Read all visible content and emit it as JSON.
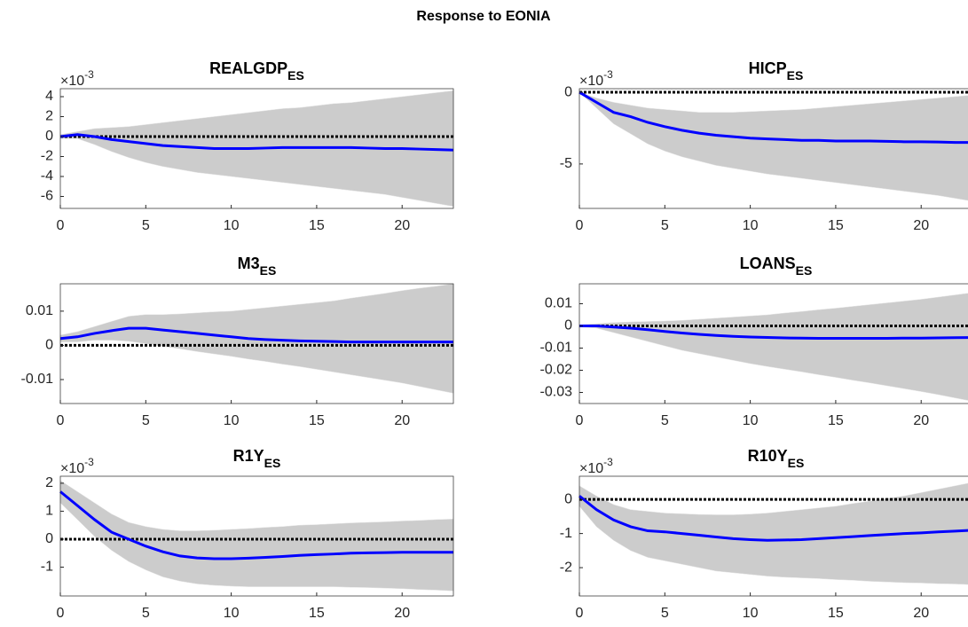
{
  "title": "Response to EONIA",
  "chart_data": [
    {
      "type": "line",
      "title": "REALGDP",
      "title_subscript": "ES",
      "axis_multiplier": "×10",
      "axis_exponent": "-3",
      "x": [
        0,
        1,
        2,
        3,
        4,
        5,
        6,
        7,
        8,
        9,
        10,
        11,
        12,
        13,
        14,
        15,
        16,
        17,
        18,
        19,
        20,
        21,
        22,
        23
      ],
      "xlim": [
        0,
        23
      ],
      "xticks": [
        0,
        5,
        10,
        15,
        20
      ],
      "ylim": [
        -7.2,
        4.8
      ],
      "yticks": [
        4,
        2,
        0,
        -2,
        -4,
        -6
      ],
      "reference_line": 0,
      "band": {
        "color": "#cccccc",
        "upper": [
          0.2,
          0.5,
          0.8,
          0.9,
          1.0,
          1.2,
          1.4,
          1.6,
          1.8,
          2.0,
          2.2,
          2.4,
          2.6,
          2.8,
          2.9,
          3.1,
          3.3,
          3.4,
          3.6,
          3.8,
          4.0,
          4.2,
          4.4,
          4.6
        ],
        "lower": [
          -0.2,
          -0.2,
          -0.8,
          -1.5,
          -2.1,
          -2.6,
          -3.0,
          -3.3,
          -3.6,
          -3.8,
          -4.0,
          -4.2,
          -4.4,
          -4.6,
          -4.8,
          -5.0,
          -5.2,
          -5.4,
          -5.6,
          -5.8,
          -6.1,
          -6.4,
          -6.7,
          -7.0
        ]
      },
      "series": [
        {
          "color": "#0000ff",
          "values": [
            0,
            0.2,
            0,
            -0.3,
            -0.5,
            -0.7,
            -0.9,
            -1.0,
            -1.1,
            -1.2,
            -1.2,
            -1.2,
            -1.15,
            -1.1,
            -1.1,
            -1.1,
            -1.1,
            -1.1,
            -1.15,
            -1.2,
            -1.2,
            -1.25,
            -1.3,
            -1.35
          ]
        }
      ]
    },
    {
      "type": "line",
      "title": "HICP",
      "title_subscript": "ES",
      "axis_multiplier": "×10",
      "axis_exponent": "-3",
      "x": [
        0,
        1,
        2,
        3,
        4,
        5,
        6,
        7,
        8,
        9,
        10,
        11,
        12,
        13,
        14,
        15,
        16,
        17,
        18,
        19,
        20,
        21,
        22,
        23
      ],
      "xlim": [
        0,
        23
      ],
      "xticks": [
        0,
        5,
        10,
        15,
        20
      ],
      "ylim": [
        -8.1,
        0.25
      ],
      "yticks": [
        0,
        -5
      ],
      "reference_line": 0,
      "band": {
        "color": "#cccccc",
        "upper": [
          0,
          -0.4,
          -0.7,
          -0.9,
          -1.1,
          -1.2,
          -1.3,
          -1.4,
          -1.4,
          -1.4,
          -1.35,
          -1.3,
          -1.25,
          -1.2,
          -1.1,
          -1.0,
          -0.9,
          -0.8,
          -0.7,
          -0.6,
          -0.5,
          -0.4,
          -0.3,
          -0.2
        ],
        "lower": [
          0,
          -1.1,
          -2.2,
          -2.9,
          -3.6,
          -4.1,
          -4.5,
          -4.8,
          -5.1,
          -5.3,
          -5.5,
          -5.7,
          -5.85,
          -6.0,
          -6.15,
          -6.3,
          -6.45,
          -6.6,
          -6.75,
          -6.9,
          -7.05,
          -7.2,
          -7.4,
          -7.6
        ]
      },
      "series": [
        {
          "color": "#0000ff",
          "values": [
            0,
            -0.7,
            -1.4,
            -1.7,
            -2.1,
            -2.4,
            -2.65,
            -2.85,
            -3.0,
            -3.1,
            -3.2,
            -3.25,
            -3.3,
            -3.35,
            -3.35,
            -3.4,
            -3.4,
            -3.4,
            -3.42,
            -3.45,
            -3.45,
            -3.47,
            -3.5,
            -3.5
          ]
        }
      ]
    },
    {
      "type": "line",
      "title": "M3",
      "title_subscript": "ES",
      "x": [
        0,
        1,
        2,
        3,
        4,
        5,
        6,
        7,
        8,
        9,
        10,
        11,
        12,
        13,
        14,
        15,
        16,
        17,
        18,
        19,
        20,
        21,
        22,
        23
      ],
      "xlim": [
        0,
        23
      ],
      "xticks": [
        0,
        5,
        10,
        15,
        20
      ],
      "ylim": [
        -0.017,
        0.018
      ],
      "yticks": [
        0.01,
        0,
        -0.01
      ],
      "reference_line": 0,
      "band": {
        "color": "#cccccc",
        "upper": [
          0.003,
          0.004,
          0.0055,
          0.007,
          0.0085,
          0.009,
          0.009,
          0.0092,
          0.0095,
          0.0098,
          0.01,
          0.0105,
          0.011,
          0.0115,
          0.012,
          0.0125,
          0.013,
          0.0138,
          0.0145,
          0.0152,
          0.016,
          0.0167,
          0.0173,
          0.018
        ],
        "lower": [
          0.001,
          0.001,
          0.0015,
          0.0015,
          0.0012,
          0.0005,
          -0.0003,
          -0.001,
          -0.0018,
          -0.0025,
          -0.0032,
          -0.004,
          -0.0047,
          -0.0055,
          -0.0062,
          -0.007,
          -0.0078,
          -0.0086,
          -0.0094,
          -0.0102,
          -0.011,
          -0.012,
          -0.013,
          -0.014
        ]
      },
      "series": [
        {
          "color": "#0000ff",
          "values": [
            0.002,
            0.0025,
            0.0035,
            0.0043,
            0.005,
            0.005,
            0.0045,
            0.004,
            0.0035,
            0.003,
            0.0025,
            0.002,
            0.0017,
            0.0015,
            0.0013,
            0.0012,
            0.0011,
            0.001,
            0.001,
            0.001,
            0.001,
            0.001,
            0.001,
            0.001
          ]
        }
      ]
    },
    {
      "type": "line",
      "title": "LOANS",
      "title_subscript": "ES",
      "x": [
        0,
        1,
        2,
        3,
        4,
        5,
        6,
        7,
        8,
        9,
        10,
        11,
        12,
        13,
        14,
        15,
        16,
        17,
        18,
        19,
        20,
        21,
        22,
        23
      ],
      "xlim": [
        0,
        23
      ],
      "xticks": [
        0,
        5,
        10,
        15,
        20
      ],
      "ylim": [
        -0.035,
        0.019
      ],
      "yticks": [
        0.01,
        0,
        -0.01,
        -0.02,
        -0.03
      ],
      "reference_line": 0,
      "band": {
        "color": "#cccccc",
        "upper": [
          0.0005,
          0.001,
          0.0015,
          0.0018,
          0.002,
          0.0022,
          0.0025,
          0.003,
          0.0035,
          0.004,
          0.0045,
          0.005,
          0.0058,
          0.0065,
          0.0073,
          0.008,
          0.0088,
          0.0096,
          0.0104,
          0.0112,
          0.012,
          0.013,
          0.014,
          0.015
        ],
        "lower": [
          -0.0005,
          -0.001,
          -0.003,
          -0.005,
          -0.007,
          -0.009,
          -0.011,
          -0.0125,
          -0.014,
          -0.0155,
          -0.017,
          -0.0183,
          -0.0195,
          -0.0207,
          -0.022,
          -0.0232,
          -0.0245,
          -0.0257,
          -0.027,
          -0.0283,
          -0.0296,
          -0.031,
          -0.0325,
          -0.034
        ]
      },
      "series": [
        {
          "color": "#0000ff",
          "values": [
            0,
            0,
            -0.0005,
            -0.001,
            -0.0017,
            -0.0025,
            -0.0032,
            -0.0038,
            -0.0043,
            -0.0047,
            -0.005,
            -0.0052,
            -0.0054,
            -0.0055,
            -0.0056,
            -0.0056,
            -0.0056,
            -0.0056,
            -0.0056,
            -0.0055,
            -0.0055,
            -0.0054,
            -0.0053,
            -0.0052
          ]
        }
      ]
    },
    {
      "type": "line",
      "title": "R1Y",
      "title_subscript": "ES",
      "axis_multiplier": "×10",
      "axis_exponent": "-3",
      "x": [
        0,
        1,
        2,
        3,
        4,
        5,
        6,
        7,
        8,
        9,
        10,
        11,
        12,
        13,
        14,
        15,
        16,
        17,
        18,
        19,
        20,
        21,
        22,
        23
      ],
      "xlim": [
        0,
        23
      ],
      "xticks": [
        0,
        5,
        10,
        15,
        20
      ],
      "ylim": [
        -2.03,
        2.25
      ],
      "yticks": [
        2,
        1,
        0,
        -1
      ],
      "reference_line": 0,
      "band": {
        "color": "#cccccc",
        "upper": [
          2.1,
          1.7,
          1.3,
          0.9,
          0.6,
          0.45,
          0.35,
          0.3,
          0.3,
          0.32,
          0.35,
          0.38,
          0.42,
          0.45,
          0.5,
          0.52,
          0.55,
          0.58,
          0.6,
          0.62,
          0.65,
          0.67,
          0.7,
          0.72
        ],
        "lower": [
          1.3,
          0.7,
          0.1,
          -0.4,
          -0.8,
          -1.1,
          -1.35,
          -1.5,
          -1.6,
          -1.65,
          -1.68,
          -1.7,
          -1.7,
          -1.7,
          -1.7,
          -1.7,
          -1.7,
          -1.72,
          -1.73,
          -1.75,
          -1.77,
          -1.8,
          -1.82,
          -1.85
        ]
      },
      "series": [
        {
          "color": "#0000ff",
          "values": [
            1.7,
            1.2,
            0.7,
            0.25,
            0,
            -0.25,
            -0.45,
            -0.6,
            -0.67,
            -0.7,
            -0.7,
            -0.68,
            -0.65,
            -0.62,
            -0.58,
            -0.55,
            -0.53,
            -0.5,
            -0.49,
            -0.48,
            -0.47,
            -0.47,
            -0.47,
            -0.47
          ]
        }
      ]
    },
    {
      "type": "line",
      "title": "R10Y",
      "title_subscript": "ES",
      "axis_multiplier": "×10",
      "axis_exponent": "-3",
      "x": [
        0,
        1,
        2,
        3,
        4,
        5,
        6,
        7,
        8,
        9,
        10,
        11,
        12,
        13,
        14,
        15,
        16,
        17,
        18,
        19,
        20,
        21,
        22,
        23
      ],
      "xlim": [
        0,
        23
      ],
      "xticks": [
        0,
        5,
        10,
        15,
        20
      ],
      "ylim": [
        -2.83,
        0.68
      ],
      "yticks": [
        0,
        -1,
        -2
      ],
      "reference_line": 0,
      "band": {
        "color": "#cccccc",
        "upper": [
          0.4,
          0.1,
          -0.15,
          -0.3,
          -0.35,
          -0.4,
          -0.42,
          -0.44,
          -0.45,
          -0.45,
          -0.43,
          -0.4,
          -0.35,
          -0.3,
          -0.25,
          -0.2,
          -0.12,
          -0.05,
          0.03,
          0.1,
          0.2,
          0.3,
          0.4,
          0.5
        ],
        "lower": [
          -0.2,
          -0.8,
          -1.2,
          -1.5,
          -1.7,
          -1.8,
          -1.9,
          -2.0,
          -2.1,
          -2.15,
          -2.2,
          -2.25,
          -2.28,
          -2.3,
          -2.32,
          -2.35,
          -2.37,
          -2.4,
          -2.42,
          -2.44,
          -2.45,
          -2.47,
          -2.48,
          -2.5
        ]
      },
      "series": [
        {
          "color": "#0000ff",
          "values": [
            0.1,
            -0.3,
            -0.6,
            -0.8,
            -0.92,
            -0.95,
            -1.0,
            -1.05,
            -1.1,
            -1.15,
            -1.18,
            -1.2,
            -1.19,
            -1.18,
            -1.15,
            -1.12,
            -1.09,
            -1.06,
            -1.03,
            -1.0,
            -0.98,
            -0.95,
            -0.93,
            -0.9
          ]
        }
      ]
    }
  ]
}
